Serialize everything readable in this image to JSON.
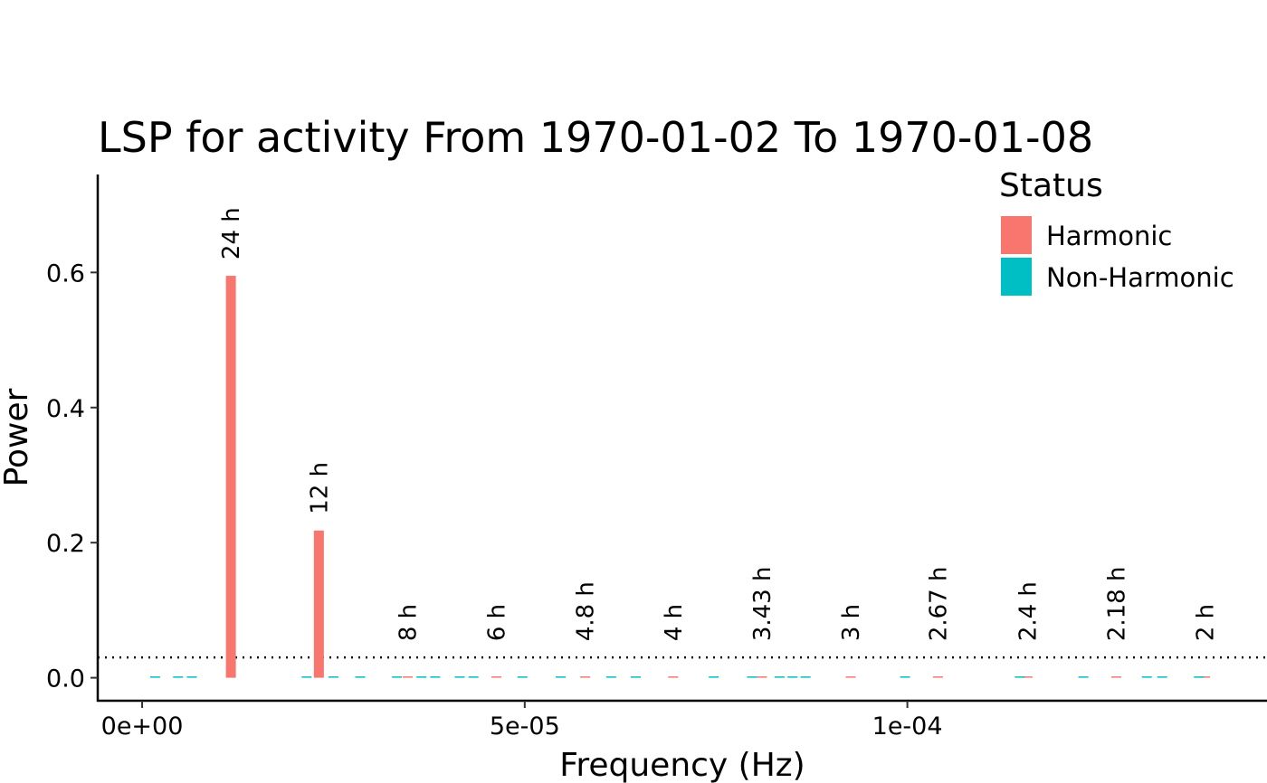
{
  "chart_data": {
    "type": "bar",
    "title": "LSP for  activity From 1970-01-02 To 1970-01-08",
    "xlabel": "Frequency (Hz)",
    "ylabel": "Power",
    "xlim": [
      -5.8e-06,
      0.000147
    ],
    "ylim": [
      -0.034,
      0.745
    ],
    "x_ticks": [
      0,
      5e-05,
      0.0001
    ],
    "x_tick_labels": [
      "0e+00",
      "5e-05",
      "1e-04"
    ],
    "y_ticks": [
      0,
      0.2,
      0.4,
      0.6
    ],
    "y_tick_labels": [
      "0.0",
      "0.2",
      "0.4",
      "0.6"
    ],
    "threshold": 0.03,
    "grid": false,
    "legend": {
      "title": "Status",
      "position": "top-right",
      "entries": [
        {
          "label": "Harmonic",
          "color": "#F8766D"
        },
        {
          "label": "Non-Harmonic",
          "color": "#00BFC4"
        }
      ]
    },
    "series": [
      {
        "name": "Harmonic",
        "color": "#F8766D",
        "x": [
          1.16e-05,
          2.31e-05,
          3.47e-05,
          4.63e-05,
          5.79e-05,
          6.94e-05,
          8.1e-05,
          9.26e-05,
          0.000104,
          0.0001157,
          0.0001273,
          0.0001389
        ],
        "values": [
          0.595,
          0.218,
          0.0015,
          0.0012,
          0.001,
          0.0015,
          0.001,
          0.0012,
          0.0008,
          0.001,
          0.0008,
          0.0015
        ]
      },
      {
        "name": "Non-Harmonic",
        "color": "#00BFC4",
        "x": [
          1.7e-06,
          4.7e-06,
          6.5e-06,
          2.15e-05,
          2.5e-05,
          2.85e-05,
          3.33e-05,
          3.65e-05,
          3.83e-05,
          4.15e-05,
          4.33e-05,
          4.97e-05,
          5.47e-05,
          6.13e-05,
          6.45e-05,
          7.47e-05,
          7.97e-05,
          8.33e-05,
          8.5e-05,
          8.67e-05,
          9.97e-05,
          0.0001147,
          0.000123,
          0.0001313,
          0.0001333,
          0.0001381
        ],
        "values": [
          0.001,
          0.001,
          0.001,
          0.001,
          0.001,
          0.001,
          0.001,
          0.001,
          0.001,
          0.001,
          0.001,
          0.001,
          0.001,
          0.001,
          0.001,
          0.001,
          0.001,
          0.001,
          0.001,
          0.001,
          0.001,
          0.001,
          0.001,
          0.001,
          0.002,
          0.001
        ]
      }
    ],
    "annotations": [
      {
        "x": 1.16e-05,
        "label": "24 h"
      },
      {
        "x": 2.31e-05,
        "label": "12 h"
      },
      {
        "x": 3.47e-05,
        "label": "8 h"
      },
      {
        "x": 4.63e-05,
        "label": "6 h"
      },
      {
        "x": 5.79e-05,
        "label": "4.8 h"
      },
      {
        "x": 6.94e-05,
        "label": "4 h"
      },
      {
        "x": 8.1e-05,
        "label": "3.43 h"
      },
      {
        "x": 9.26e-05,
        "label": "3 h"
      },
      {
        "x": 0.000104,
        "label": "2.67 h"
      },
      {
        "x": 0.0001157,
        "label": "2.4 h"
      },
      {
        "x": 0.0001273,
        "label": "2.18 h"
      },
      {
        "x": 0.0001389,
        "label": "2 h"
      }
    ]
  }
}
